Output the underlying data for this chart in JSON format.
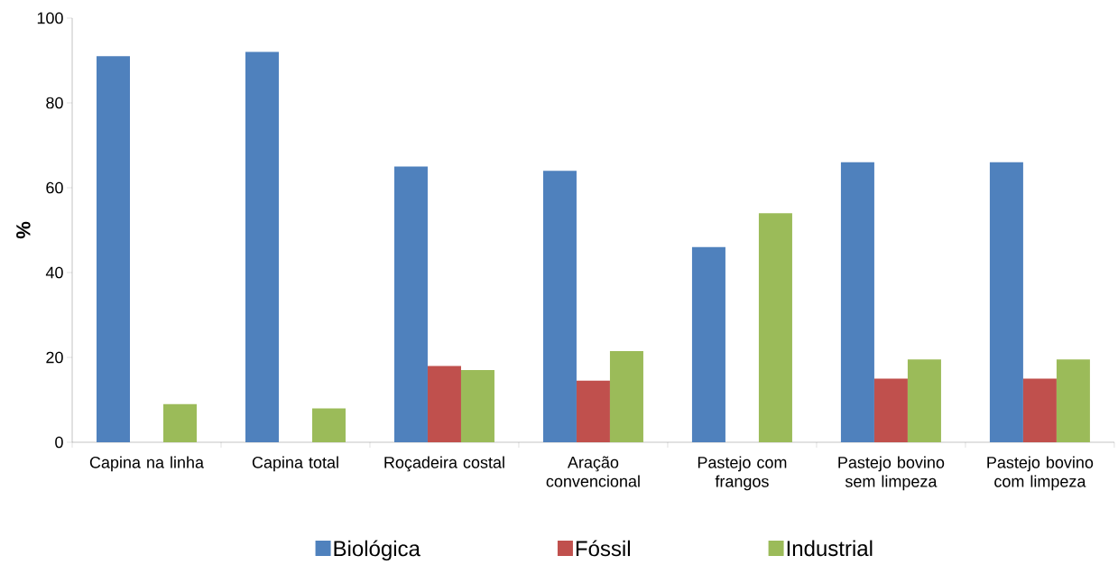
{
  "chart_data": {
    "type": "bar",
    "ylabel": "%",
    "categories": [
      "Capina na linha",
      "Capina total",
      "Roçadeira costal",
      "Aração convencional",
      "Pastejo com frangos",
      "Pastejo bovino sem limpeza",
      "Pastejo bovino com limpeza"
    ],
    "series": [
      {
        "name": "Biológica",
        "color": "#4f81bd",
        "values": [
          91,
          92,
          65,
          64,
          46,
          66,
          66
        ]
      },
      {
        "name": "Fóssil",
        "color": "#c0504d",
        "values": [
          null,
          null,
          18,
          14.5,
          null,
          15,
          15
        ]
      },
      {
        "name": "Industrial",
        "color": "#9bbb59",
        "values": [
          9,
          8,
          17,
          21.5,
          54,
          19.5,
          19.5
        ]
      }
    ],
    "ylim": [
      0,
      100
    ],
    "yticks": [
      0,
      20,
      40,
      60,
      80,
      100
    ],
    "grid": false,
    "legend": "bottom"
  }
}
